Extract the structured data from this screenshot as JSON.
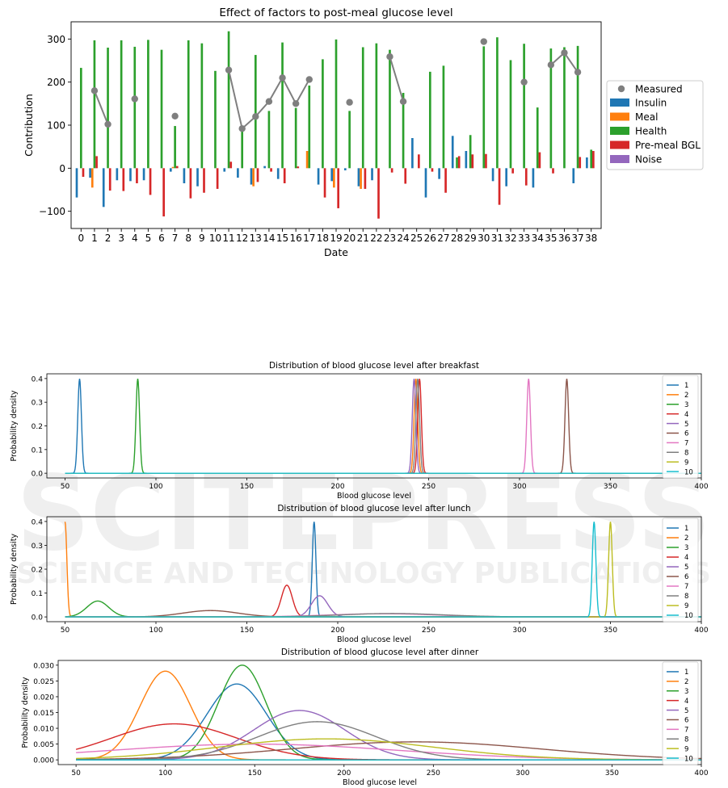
{
  "chart_data": [
    {
      "type": "bar",
      "title": "Effect of factors to post-meal glucose level",
      "xlabel": "Date",
      "ylabel": "Contribution",
      "ylim": [
        -140,
        340
      ],
      "yticks": [
        -100,
        0,
        100,
        200,
        300
      ],
      "categories": [
        "0",
        "1",
        "2",
        "3",
        "4",
        "5",
        "6",
        "7",
        "8",
        "9",
        "10",
        "11",
        "12",
        "13",
        "14",
        "15",
        "16",
        "17",
        "18",
        "19",
        "20",
        "21",
        "22",
        "23",
        "24",
        "25",
        "26",
        "27",
        "28",
        "29",
        "30",
        "31",
        "32",
        "33",
        "34",
        "35",
        "36",
        "37",
        "38"
      ],
      "legend_position": "right",
      "series": [
        {
          "name": "Insulin",
          "color": "#1f77b4",
          "values": [
            -68,
            -22,
            -90,
            -28,
            -30,
            -28,
            0,
            -8,
            -35,
            -42,
            0,
            -8,
            -22,
            -38,
            5,
            -25,
            0,
            0,
            -38,
            -30,
            -5,
            -42,
            -28,
            0,
            0,
            70,
            -68,
            -25,
            75,
            40,
            0,
            -30,
            -42,
            0,
            -45,
            0,
            0,
            -35,
            25
          ]
        },
        {
          "name": "Meal",
          "color": "#ff7f0e",
          "values": [
            0,
            -45,
            0,
            0,
            0,
            0,
            0,
            3,
            0,
            0,
            0,
            0,
            0,
            -42,
            0,
            0,
            0,
            40,
            0,
            -45,
            0,
            -48,
            0,
            0,
            0,
            0,
            0,
            0,
            0,
            0,
            0,
            0,
            0,
            0,
            0,
            0,
            0,
            0,
            0
          ]
        },
        {
          "name": "Health",
          "color": "#2ca02c",
          "values": [
            233,
            297,
            280,
            297,
            282,
            298,
            275,
            98,
            297,
            290,
            226,
            318,
            95,
            263,
            133,
            292,
            140,
            192,
            253,
            299,
            133,
            281,
            290,
            275,
            175,
            0,
            224,
            238,
            25,
            77,
            283,
            304,
            251,
            289,
            141,
            278,
            281,
            284,
            43
          ]
        },
        {
          "name": "Pre-meal BGL",
          "color": "#d62728",
          "values": [
            -20,
            28,
            -52,
            -53,
            -35,
            -62,
            -112,
            5,
            -70,
            -57,
            -48,
            15,
            0,
            -32,
            -8,
            -35,
            4,
            0,
            -68,
            -93,
            0,
            -48,
            -117,
            -10,
            -36,
            32,
            -8,
            -57,
            28,
            32,
            33,
            -85,
            -12,
            -40,
            37,
            -12,
            0,
            26,
            40
          ]
        },
        {
          "name": "Noise",
          "color": "#9467bd",
          "values": [
            0,
            0,
            0,
            0,
            0,
            0,
            0,
            0,
            0,
            0,
            0,
            0,
            0,
            0,
            0,
            0,
            0,
            0,
            0,
            0,
            0,
            0,
            0,
            0,
            0,
            0,
            0,
            0,
            0,
            0,
            0,
            0,
            0,
            0,
            0,
            0,
            0,
            0,
            0
          ]
        }
      ],
      "measured": {
        "name": "Measured",
        "color": "#7f7f7f",
        "points": [
          [
            1,
            180
          ],
          [
            2,
            102
          ],
          [
            4,
            161
          ],
          [
            7,
            121
          ],
          [
            11,
            228
          ],
          [
            12,
            92
          ],
          [
            13,
            120
          ],
          [
            14,
            155
          ],
          [
            15,
            210
          ],
          [
            16,
            150
          ],
          [
            17,
            206
          ],
          [
            20,
            153
          ],
          [
            23,
            259
          ],
          [
            24,
            155
          ],
          [
            30,
            294
          ],
          [
            33,
            200
          ],
          [
            35,
            240
          ],
          [
            36,
            268
          ],
          [
            37,
            223
          ]
        ],
        "segments": [
          [
            1,
            2
          ],
          [
            11,
            17
          ],
          [
            23,
            24
          ],
          [
            35,
            37
          ]
        ]
      }
    },
    {
      "type": "line",
      "title": "Distribution of blood glucose level after breakfast",
      "xlabel": "Blood glucose level",
      "ylabel": "Probability density",
      "xlim": [
        50,
        400
      ],
      "xticks": [
        50,
        100,
        150,
        200,
        250,
        300,
        350,
        400
      ],
      "ylim": [
        0,
        0.4
      ],
      "yticks": [
        0.0,
        0.1,
        0.2,
        0.3,
        0.4
      ],
      "ytick_labels": [
        "0.0",
        "0.1",
        "0.2",
        "0.3",
        "0.4"
      ],
      "legend_position": "right",
      "series": [
        {
          "name": "1",
          "color": "#1f77b4",
          "mean": 58,
          "sd": 1,
          "scale": 1
        },
        {
          "name": "2",
          "color": "#ff7f0e",
          "mean": 243,
          "sd": 1,
          "scale": 1
        },
        {
          "name": "3",
          "color": "#2ca02c",
          "mean": 90,
          "sd": 1,
          "scale": 1
        },
        {
          "name": "4",
          "color": "#d62728",
          "mean": 245,
          "sd": 1,
          "scale": 1
        },
        {
          "name": "5",
          "color": "#9467bd",
          "mean": 242,
          "sd": 1,
          "scale": 1
        },
        {
          "name": "6",
          "color": "#8c564b",
          "mean": 326,
          "sd": 1,
          "scale": 1
        },
        {
          "name": "7",
          "color": "#e377c2",
          "mean": 305,
          "sd": 1,
          "scale": 1
        },
        {
          "name": "8",
          "color": "#7f7f7f",
          "mean": 244,
          "sd": 1,
          "scale": 1
        },
        {
          "name": "9",
          "color": "#bcbd22",
          "mean": 0,
          "sd": 1,
          "scale": 0
        },
        {
          "name": "10",
          "color": "#17becf",
          "mean": 0,
          "sd": 1,
          "scale": 0
        }
      ]
    },
    {
      "type": "line",
      "title": "Distribution of blood glucose level after lunch",
      "xlabel": "Blood glucose level",
      "ylabel": "Probability density",
      "xlim": [
        50,
        400
      ],
      "xticks": [
        50,
        100,
        150,
        200,
        250,
        300,
        350,
        400
      ],
      "ylim": [
        0,
        0.4
      ],
      "yticks": [
        0.0,
        0.1,
        0.2,
        0.3,
        0.4
      ],
      "ytick_labels": [
        "0.0",
        "0.1",
        "0.2",
        "0.3",
        "0.4"
      ],
      "legend_position": "right",
      "series": [
        {
          "name": "1",
          "color": "#1f77b4",
          "mean": 187,
          "sd": 1,
          "scale": 1
        },
        {
          "name": "2",
          "color": "#ff7f0e",
          "mean": 50,
          "sd": 1,
          "scale": 1
        },
        {
          "name": "3",
          "color": "#2ca02c",
          "mean": 68,
          "sd": 6,
          "scale": 1
        },
        {
          "name": "4",
          "color": "#d62728",
          "mean": 172,
          "sd": 3,
          "scale": 1
        },
        {
          "name": "5",
          "color": "#9467bd",
          "mean": 190,
          "sd": 4.5,
          "scale": 1
        },
        {
          "name": "6",
          "color": "#8c564b",
          "mean": 130,
          "sd": 15,
          "scale": 1
        },
        {
          "name": "7",
          "color": "#e377c2",
          "mean": 225,
          "sd": 30,
          "scale": 1
        },
        {
          "name": "8",
          "color": "#7f7f7f",
          "mean": 230,
          "sd": 28,
          "scale": 1
        },
        {
          "name": "9",
          "color": "#bcbd22",
          "mean": 350,
          "sd": 1,
          "scale": 1
        },
        {
          "name": "10",
          "color": "#17becf",
          "mean": 341,
          "sd": 1,
          "scale": 1
        }
      ]
    },
    {
      "type": "line",
      "title": "Distribution of blood glucose level after dinner",
      "xlabel": "Blood glucose level",
      "ylabel": "Probability density",
      "xlim": [
        50,
        400
      ],
      "xticks": [
        50,
        100,
        150,
        200,
        250,
        300,
        350,
        400
      ],
      "ylim": [
        0,
        0.03
      ],
      "yticks": [
        0.0,
        0.005,
        0.01,
        0.015,
        0.02,
        0.025,
        0.03
      ],
      "ytick_labels": [
        "0.000",
        "0.005",
        "0.010",
        "0.015",
        "0.020",
        "0.025",
        "0.030"
      ],
      "legend_position": "right",
      "series": [
        {
          "name": "1",
          "color": "#1f77b4",
          "mean": 140,
          "sd": 16.6,
          "scale": 1
        },
        {
          "name": "2",
          "color": "#ff7f0e",
          "mean": 100,
          "sd": 14.2,
          "scale": 1
        },
        {
          "name": "3",
          "color": "#2ca02c",
          "mean": 143,
          "sd": 13.3,
          "scale": 1
        },
        {
          "name": "4",
          "color": "#d62728",
          "mean": 105,
          "sd": 35,
          "scale": 1
        },
        {
          "name": "5",
          "color": "#9467bd",
          "mean": 175,
          "sd": 25.5,
          "scale": 1
        },
        {
          "name": "6",
          "color": "#8c564b",
          "mean": 240,
          "sd": 70,
          "scale": 1
        },
        {
          "name": "7",
          "color": "#e377c2",
          "mean": 150,
          "sd": 80,
          "scale": 1
        },
        {
          "name": "8",
          "color": "#7f7f7f",
          "mean": 185,
          "sd": 33,
          "scale": 1
        },
        {
          "name": "9",
          "color": "#bcbd22",
          "mean": 190,
          "sd": 60,
          "scale": 1
        },
        {
          "name": "10",
          "color": "#17becf",
          "mean": 0,
          "sd": 1,
          "scale": 0
        }
      ]
    }
  ],
  "watermark": {
    "line1": "SCITEPRESS",
    "line2": "SCIENCE AND TECHNOLOGY PUBLICATIONS"
  }
}
